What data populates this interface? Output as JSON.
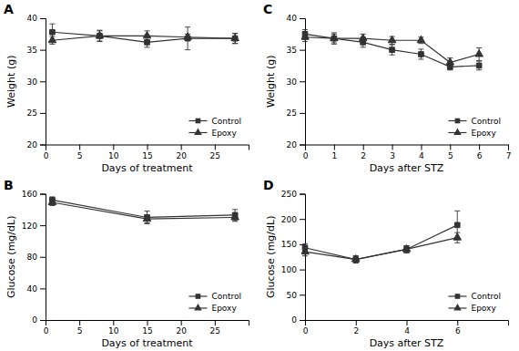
{
  "chart_data": [
    {
      "type": "line",
      "title": "A",
      "x_label": "Days of treatment",
      "y_label": "Weight (g)",
      "x": [
        1,
        8,
        15,
        21,
        28
      ],
      "series": [
        {
          "name": "Control",
          "color": "#333333",
          "marker": "square",
          "line_style": "solid",
          "values": [
            37.8,
            37.2,
            36.2,
            36.8,
            36.8
          ],
          "errors": [
            1.3,
            0.9,
            0.8,
            1.8,
            0.8
          ]
        },
        {
          "name": "Epoxy",
          "color": "#333333",
          "marker": "triangle",
          "line_style": "solid",
          "values": [
            36.5,
            37.2,
            37.2,
            37.0,
            36.8
          ],
          "errors": [
            0.6,
            0.8,
            0.8,
            0.5,
            0.8
          ]
        }
      ],
      "xlim": [
        0,
        30
      ],
      "ylim": [
        20,
        40
      ],
      "xticks": [
        0,
        5,
        10,
        15,
        20,
        25
      ],
      "yticks": [
        20,
        25,
        30,
        35,
        40
      ],
      "grid": false,
      "legend": "lower right"
    },
    {
      "type": "line",
      "title": "C",
      "x_label": "Days after STZ",
      "y_label": "Weight (g)",
      "x": [
        0,
        1,
        2,
        3,
        4,
        5,
        6
      ],
      "series": [
        {
          "name": "Control",
          "color": "#333333",
          "marker": "square",
          "line_style": "solid",
          "values": [
            37.5,
            36.8,
            36.2,
            35.0,
            34.3,
            32.3,
            32.5
          ],
          "errors": [
            0.7,
            0.9,
            0.8,
            0.8,
            0.8,
            0.5,
            0.7
          ]
        },
        {
          "name": "Epoxy",
          "color": "#333333",
          "marker": "triangle",
          "line_style": "solid",
          "values": [
            37.0,
            36.8,
            36.8,
            36.5,
            36.5,
            33.0,
            34.3
          ],
          "errors": [
            0.7,
            0.7,
            0.7,
            0.6,
            0.5,
            0.7,
            1.0
          ]
        }
      ],
      "xlim": [
        0,
        7
      ],
      "ylim": [
        20,
        40
      ],
      "xticks": [
        0,
        1,
        2,
        3,
        4,
        5,
        6,
        7
      ],
      "yticks": [
        20,
        25,
        30,
        35,
        40
      ],
      "grid": false,
      "legend": "lower right"
    },
    {
      "type": "line",
      "title": "B",
      "x_label": "Days of treatment",
      "y_label": "Glucose (mg/dL)",
      "x": [
        1,
        15,
        28
      ],
      "series": [
        {
          "name": "Control",
          "color": "#333333",
          "marker": "square",
          "line_style": "solid",
          "values": [
            152,
            130,
            133
          ],
          "errors": [
            4,
            8,
            7
          ]
        },
        {
          "name": "Epoxy",
          "color": "#333333",
          "marker": "triangle",
          "line_style": "solid",
          "values": [
            149,
            128,
            130
          ],
          "errors": [
            4,
            5,
            5
          ]
        }
      ],
      "xlim": [
        0,
        30
      ],
      "ylim": [
        0,
        160
      ],
      "xticks": [
        0,
        5,
        10,
        15,
        20,
        25
      ],
      "yticks": [
        0,
        40,
        80,
        120,
        160
      ],
      "grid": false,
      "legend": "lower right"
    },
    {
      "type": "line",
      "title": "D",
      "x_label": "Days after STZ",
      "y_label": "Glucose (mg/dL)",
      "x": [
        0,
        2,
        4,
        6
      ],
      "series": [
        {
          "name": "Control",
          "color": "#333333",
          "marker": "square",
          "line_style": "solid",
          "values": [
            143,
            120,
            140,
            188
          ],
          "errors": [
            8,
            7,
            7,
            28
          ]
        },
        {
          "name": "Epoxy",
          "color": "#333333",
          "marker": "triangle",
          "line_style": "solid",
          "values": [
            135,
            120,
            140,
            163
          ],
          "errors": [
            8,
            7,
            7,
            10
          ]
        }
      ],
      "xlim": [
        0,
        8
      ],
      "ylim": [
        0,
        250
      ],
      "xticks": [
        0,
        2,
        4,
        6
      ],
      "yticks": [
        0,
        50,
        100,
        150,
        200,
        250
      ],
      "grid": false,
      "legend": "lower right"
    }
  ]
}
